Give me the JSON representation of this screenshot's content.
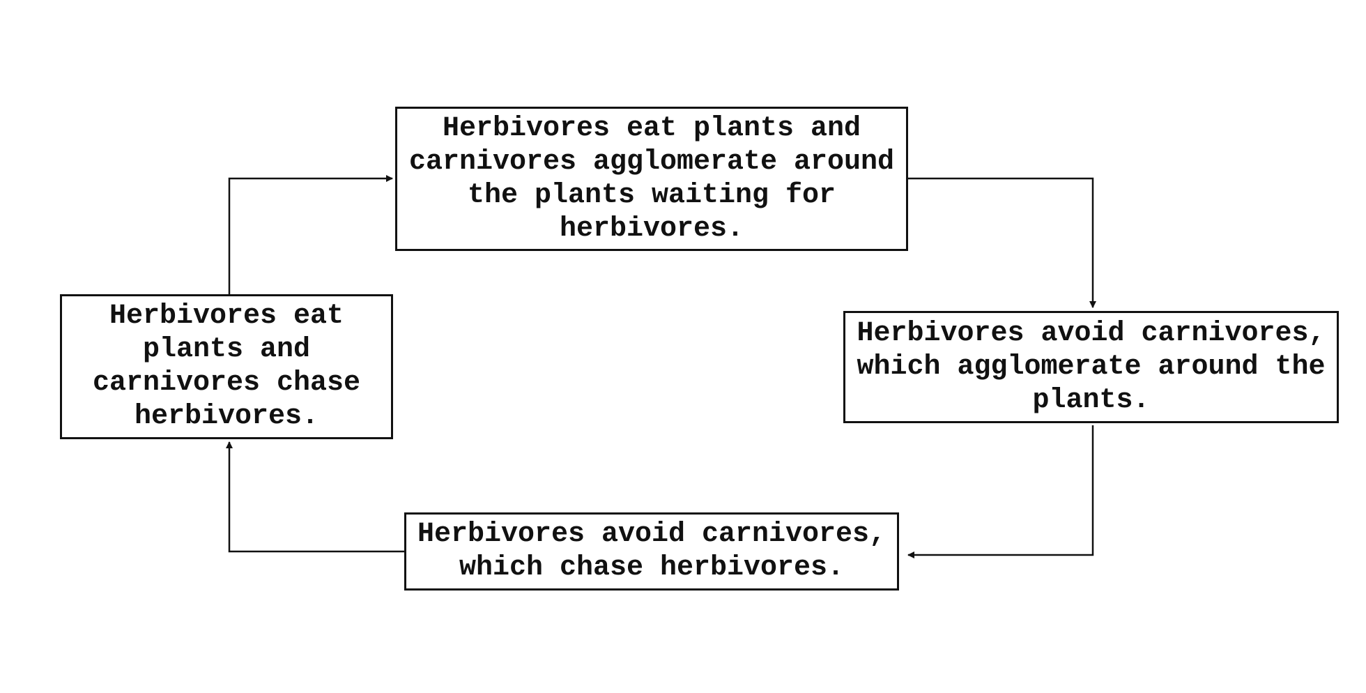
{
  "diagram": {
    "nodes": {
      "top": {
        "text": "Herbivores eat plants and carnivores agglomerate around the plants waiting for herbivores."
      },
      "right": {
        "text": "Herbivores avoid carnivores, which agglomerate around the plants."
      },
      "bottom": {
        "text": "Herbivores avoid carnivores, which chase herbivores."
      },
      "left": {
        "text": "Herbivores eat plants and carnivores chase herbivores."
      }
    },
    "edges": [
      {
        "from": "top",
        "to": "right"
      },
      {
        "from": "right",
        "to": "bottom"
      },
      {
        "from": "bottom",
        "to": "left"
      },
      {
        "from": "left",
        "to": "top"
      }
    ],
    "colors": {
      "stroke": "#111111",
      "background": "#ffffff"
    }
  }
}
